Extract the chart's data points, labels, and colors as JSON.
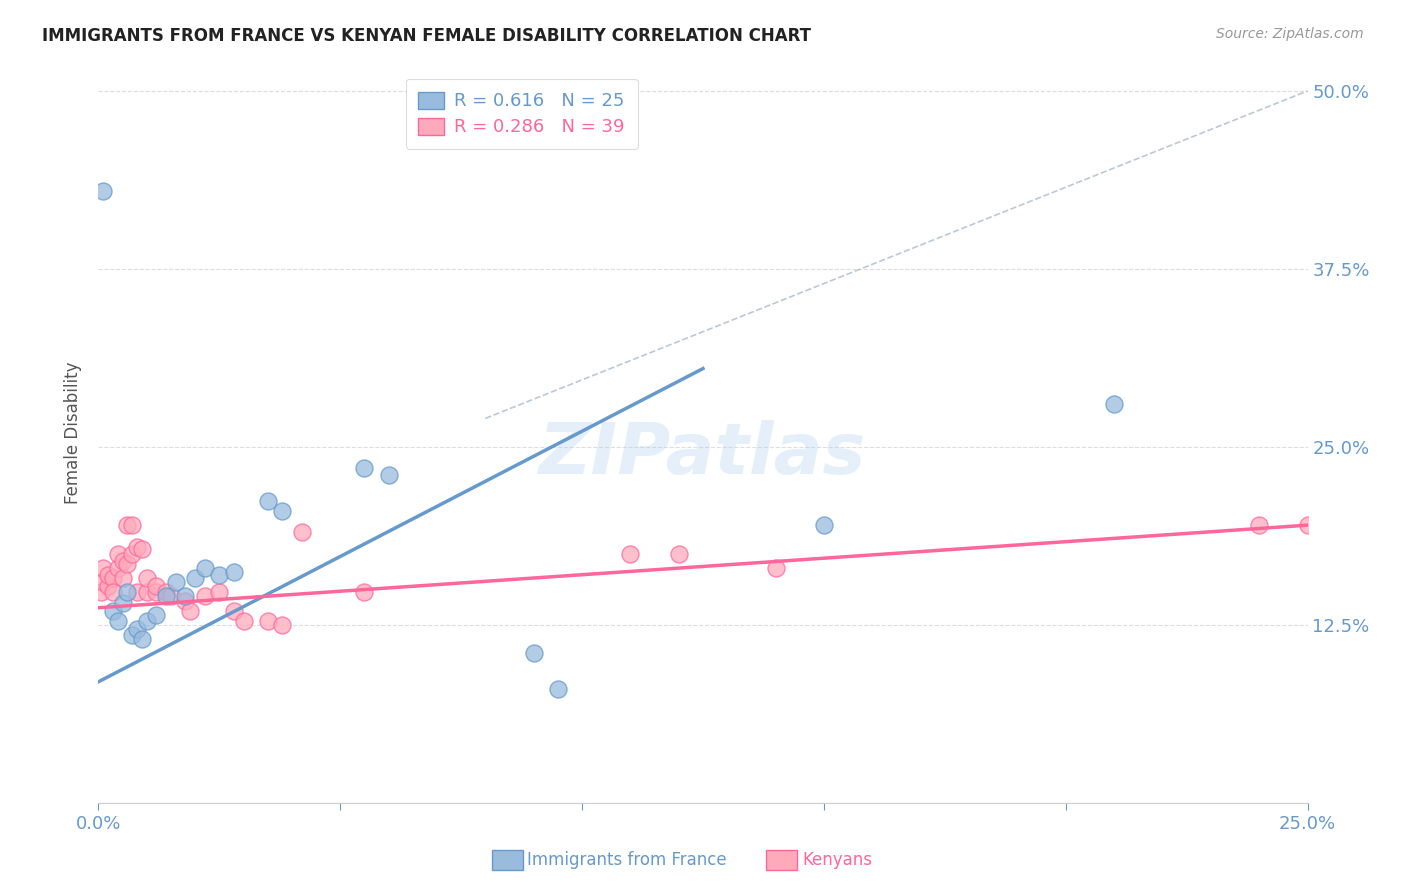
{
  "title": "IMMIGRANTS FROM FRANCE VS KENYAN FEMALE DISABILITY CORRELATION CHART",
  "source": "Source: ZipAtlas.com",
  "ylabel": "Female Disability",
  "xlim": [
    0.0,
    0.25
  ],
  "ylim": [
    0.0,
    0.52
  ],
  "ytick_positions": [
    0.0,
    0.125,
    0.25,
    0.375,
    0.5
  ],
  "ytick_labels": [
    "",
    "12.5%",
    "25.0%",
    "37.5%",
    "50.0%"
  ],
  "xtick_positions": [
    0.0,
    0.05,
    0.1,
    0.15,
    0.2,
    0.25
  ],
  "xtick_labels": [
    "0.0%",
    "",
    "",
    "",
    "",
    "25.0%"
  ],
  "color_blue": "#6699CC",
  "color_pink": "#FF6699",
  "color_blue_light": "#99BBDD",
  "color_pink_light": "#FFAABB",
  "color_dashed": "#AABBCC",
  "watermark_text": "ZIPatlas",
  "blue_points": [
    [
      0.001,
      0.43
    ],
    [
      0.003,
      0.135
    ],
    [
      0.004,
      0.128
    ],
    [
      0.005,
      0.14
    ],
    [
      0.006,
      0.148
    ],
    [
      0.007,
      0.118
    ],
    [
      0.008,
      0.122
    ],
    [
      0.009,
      0.115
    ],
    [
      0.01,
      0.128
    ],
    [
      0.012,
      0.132
    ],
    [
      0.014,
      0.145
    ],
    [
      0.016,
      0.155
    ],
    [
      0.018,
      0.145
    ],
    [
      0.02,
      0.158
    ],
    [
      0.022,
      0.165
    ],
    [
      0.025,
      0.16
    ],
    [
      0.028,
      0.162
    ],
    [
      0.035,
      0.212
    ],
    [
      0.038,
      0.205
    ],
    [
      0.055,
      0.235
    ],
    [
      0.06,
      0.23
    ],
    [
      0.09,
      0.105
    ],
    [
      0.095,
      0.08
    ],
    [
      0.15,
      0.195
    ],
    [
      0.21,
      0.28
    ]
  ],
  "pink_points": [
    [
      0.0005,
      0.148
    ],
    [
      0.001,
      0.155
    ],
    [
      0.001,
      0.165
    ],
    [
      0.002,
      0.152
    ],
    [
      0.002,
      0.16
    ],
    [
      0.003,
      0.158
    ],
    [
      0.003,
      0.148
    ],
    [
      0.004,
      0.165
    ],
    [
      0.004,
      0.175
    ],
    [
      0.005,
      0.158
    ],
    [
      0.005,
      0.17
    ],
    [
      0.006,
      0.168
    ],
    [
      0.006,
      0.195
    ],
    [
      0.007,
      0.175
    ],
    [
      0.007,
      0.195
    ],
    [
      0.008,
      0.18
    ],
    [
      0.008,
      0.148
    ],
    [
      0.009,
      0.178
    ],
    [
      0.01,
      0.148
    ],
    [
      0.01,
      0.158
    ],
    [
      0.012,
      0.148
    ],
    [
      0.012,
      0.152
    ],
    [
      0.014,
      0.148
    ],
    [
      0.015,
      0.145
    ],
    [
      0.018,
      0.142
    ],
    [
      0.019,
      0.135
    ],
    [
      0.022,
      0.145
    ],
    [
      0.025,
      0.148
    ],
    [
      0.028,
      0.135
    ],
    [
      0.03,
      0.128
    ],
    [
      0.035,
      0.128
    ],
    [
      0.038,
      0.125
    ],
    [
      0.042,
      0.19
    ],
    [
      0.055,
      0.148
    ],
    [
      0.11,
      0.175
    ],
    [
      0.12,
      0.175
    ],
    [
      0.14,
      0.165
    ],
    [
      0.24,
      0.195
    ],
    [
      0.25,
      0.195
    ]
  ],
  "blue_line_x": [
    0.0,
    0.125
  ],
  "blue_line_y": [
    0.085,
    0.305
  ],
  "pink_line_x": [
    0.0,
    0.25
  ],
  "pink_line_y": [
    0.137,
    0.195
  ],
  "dashed_line_x": [
    0.08,
    0.25
  ],
  "dashed_line_y": [
    0.27,
    0.5
  ],
  "title_color": "#222222",
  "axis_label_color": "#6699CC",
  "grid_color": "#DDDDDD"
}
